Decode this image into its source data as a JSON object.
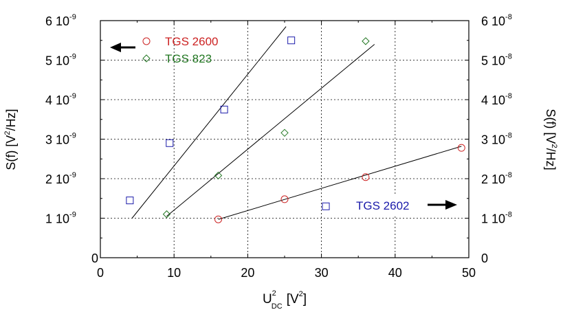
{
  "chart_data": {
    "type": "scatter",
    "xlabel": {
      "base": "U",
      "sup": "2",
      "sub": "DC",
      "unit_pre": "[V",
      "unit_sup": "2",
      "unit_post": "]"
    },
    "ylabel_left": {
      "pre": "S(f)  [V",
      "sup": "2",
      "post": "/Hz]"
    },
    "ylabel_right": {
      "pre": "S(f)  [V",
      "sup": "2",
      "post": "/Hz]"
    },
    "xlim": [
      0,
      50
    ],
    "ylim_left": [
      0,
      6e-09
    ],
    "ylim_right": [
      0,
      6e-08
    ],
    "x_ticks": [
      {
        "value": 0,
        "label": "0"
      },
      {
        "value": 10,
        "label": "10"
      },
      {
        "value": 20,
        "label": "20"
      },
      {
        "value": 30,
        "label": "30"
      },
      {
        "value": 40,
        "label": "40"
      },
      {
        "value": 50,
        "label": "50"
      }
    ],
    "y_ticks_left": [
      {
        "value": 0,
        "label": "0",
        "exp": ""
      },
      {
        "value": 1,
        "label": "1 10",
        "exp": "-9"
      },
      {
        "value": 2,
        "label": "2 10",
        "exp": "-9"
      },
      {
        "value": 3,
        "label": "3 10",
        "exp": "-9"
      },
      {
        "value": 4,
        "label": "4 10",
        "exp": "-9"
      },
      {
        "value": 5,
        "label": "5 10",
        "exp": "-9"
      },
      {
        "value": 6,
        "label": "6 10",
        "exp": "-9"
      }
    ],
    "y_ticks_right": [
      {
        "value": 0,
        "label": "0",
        "exp": ""
      },
      {
        "value": 1,
        "label": "1 10",
        "exp": "-8"
      },
      {
        "value": 2,
        "label": "2 10",
        "exp": "-8"
      },
      {
        "value": 3,
        "label": "3 10",
        "exp": "-8"
      },
      {
        "value": 4,
        "label": "4 10",
        "exp": "-8"
      },
      {
        "value": 5,
        "label": "5 10",
        "exp": "-8"
      },
      {
        "value": 6,
        "label": "6 10",
        "exp": "-8"
      }
    ],
    "grid": "dashed",
    "series": [
      {
        "name": "TGS 2600",
        "axis": "left",
        "marker": "circle",
        "color": "#cc2222",
        "x": [
          16.0,
          25.0,
          36.0,
          49.0
        ],
        "y": [
          9.7e-10,
          1.48e-09,
          2.04e-09,
          2.78e-09
        ],
        "fit": [
          [
            16.0,
            9.7e-10
          ],
          [
            49.0,
            2.82e-09
          ]
        ]
      },
      {
        "name": "TGS 823",
        "axis": "left",
        "marker": "diamond",
        "color": "#227722",
        "x": [
          9.0,
          16.0,
          25.0,
          36.0
        ],
        "y": [
          1.1e-09,
          2.08e-09,
          3.16e-09,
          5.48e-09
        ],
        "fit": [
          [
            9.0,
            1.05e-09
          ],
          [
            37.2,
            5.4e-09
          ]
        ]
      },
      {
        "name": "TGS 2602",
        "axis": "right",
        "marker": "square",
        "color": "#1a1aaa",
        "x": [
          4.0,
          9.4,
          16.8,
          25.9,
          30.6
        ],
        "y": [
          1.45e-08,
          2.9e-08,
          3.75e-08,
          5.5e-08,
          1.3e-08
        ],
        "fit": [
          [
            4.3,
            1e-08
          ],
          [
            25.2,
            5.85e-08
          ]
        ]
      }
    ],
    "legend": {
      "position": "top-left",
      "arrow_left": "left-arrow-icon",
      "arrow_right": "right-arrow-icon"
    }
  }
}
